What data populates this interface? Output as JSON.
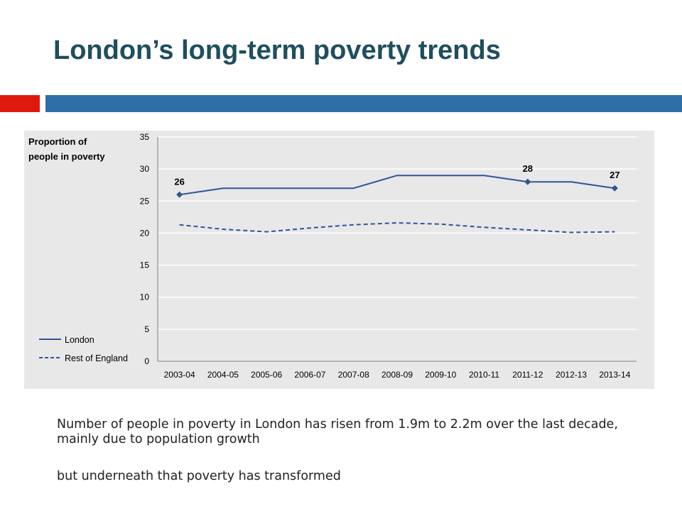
{
  "slide": {
    "title": "London’s long-term poverty trends",
    "paragraph1": "Number of people in poverty in London has risen from 1.9m to 2.2m over the last decade, mainly due to population growth",
    "paragraph2": "but underneath that poverty has transformed"
  },
  "colors": {
    "title": "#1f4e5f",
    "accent_red": "#e0190f",
    "accent_blue": "#2e6fa7",
    "series": "#2f5597",
    "panel": "#e8e8e8"
  },
  "chart_data": {
    "type": "line",
    "ylabel": "Proportion of people in poverty",
    "ylabel_lines": [
      "Proportion of",
      "people in poverty"
    ],
    "ylim": [
      0,
      35
    ],
    "yticks": [
      0,
      5,
      10,
      15,
      20,
      25,
      30,
      35
    ],
    "grid": true,
    "legend_position": "bottom-left",
    "categories": [
      "2003-04",
      "2004-05",
      "2005-06",
      "2006-07",
      "2007-08",
      "2008-09",
      "2009-10",
      "2010-11",
      "2011-12",
      "2012-13",
      "2013-14"
    ],
    "series": [
      {
        "name": "London",
        "style": "solid",
        "values": [
          26,
          27,
          27,
          27,
          27,
          29,
          29,
          29,
          28,
          28,
          27
        ],
        "markers": [
          0,
          8,
          10
        ]
      },
      {
        "name": "Rest of England",
        "style": "dashed",
        "values": [
          21.3,
          20.6,
          20.2,
          20.8,
          21.3,
          21.6,
          21.4,
          20.9,
          20.5,
          20.1,
          20.2
        ]
      }
    ],
    "annotations": [
      {
        "category": "2003-04",
        "value": 26,
        "label": "26"
      },
      {
        "category": "2011-12",
        "value": 28,
        "label": "28"
      },
      {
        "category": "2013-14",
        "value": 27,
        "label": "27"
      }
    ]
  }
}
